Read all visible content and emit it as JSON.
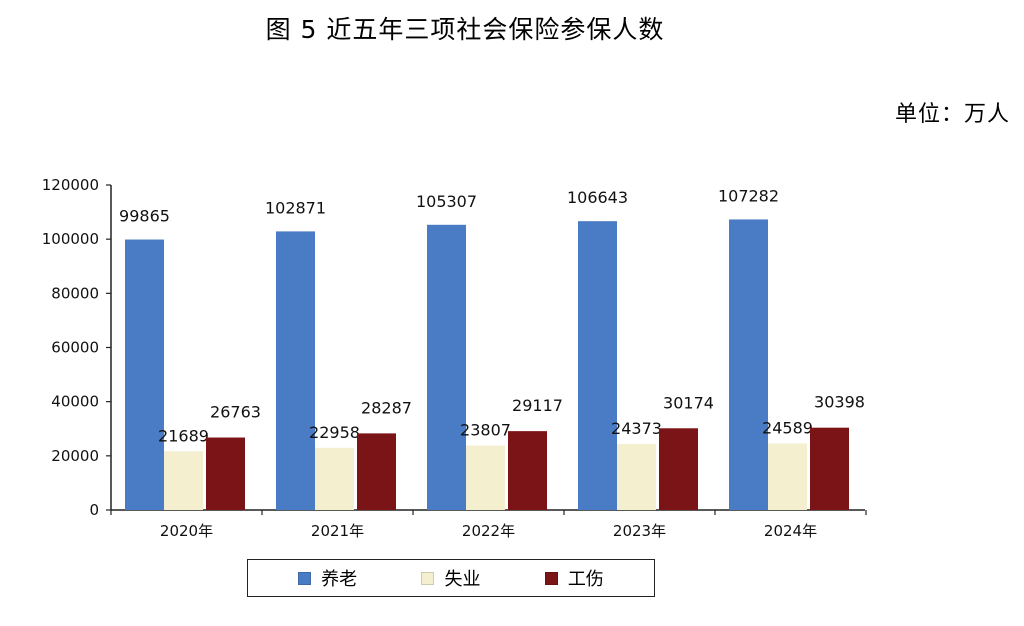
{
  "header": {
    "title": "图 5  近五年三项社会保险参保人数",
    "unit": "单位：万人"
  },
  "chart_data": {
    "type": "bar",
    "title": "图 5  近五年三项社会保险参保人数",
    "unit": "单位：万人",
    "categories": [
      "2020年",
      "2021年",
      "2022年",
      "2023年",
      "2024年"
    ],
    "series": [
      {
        "name": "养老",
        "color": "#4a7cc5",
        "values": [
          99865,
          102871,
          105307,
          106643,
          107282
        ]
      },
      {
        "name": "失业",
        "color": "#f3efcf",
        "values": [
          21689,
          22958,
          23807,
          24373,
          24589
        ]
      },
      {
        "name": "工伤",
        "color": "#7b1416",
        "values": [
          26763,
          28287,
          29117,
          30174,
          30398
        ]
      }
    ],
    "yticks": [
      "0",
      "20000",
      "40000",
      "60000",
      "80000",
      "100000",
      "120000"
    ],
    "ylim": [
      0,
      120000
    ],
    "grid": false,
    "legend_position": "bottom"
  }
}
